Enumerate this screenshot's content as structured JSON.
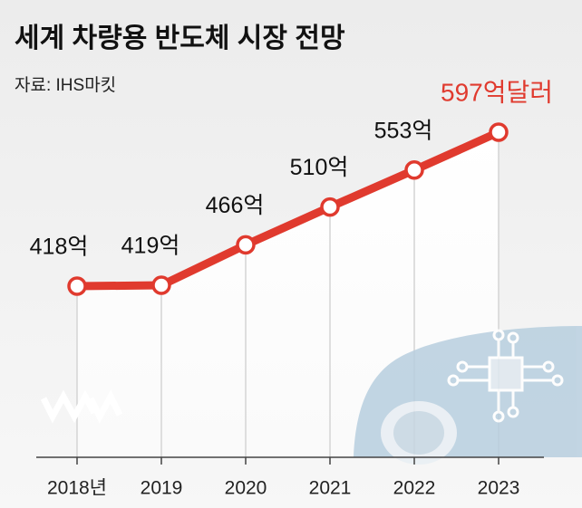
{
  "chart_data": {
    "type": "line",
    "title": "세계 차량용 반도체 시장 전망",
    "source": "자료: IHS마킷",
    "categories": [
      "2018년",
      "2019",
      "2020",
      "2021",
      "2022",
      "2023"
    ],
    "values": [
      418,
      419,
      466,
      510,
      553,
      597
    ],
    "value_labels": [
      "418억",
      "419억",
      "466억",
      "510억",
      "553억",
      "597억달러"
    ],
    "color": "#e03a2e",
    "highlight_color": "#e03a2e"
  }
}
